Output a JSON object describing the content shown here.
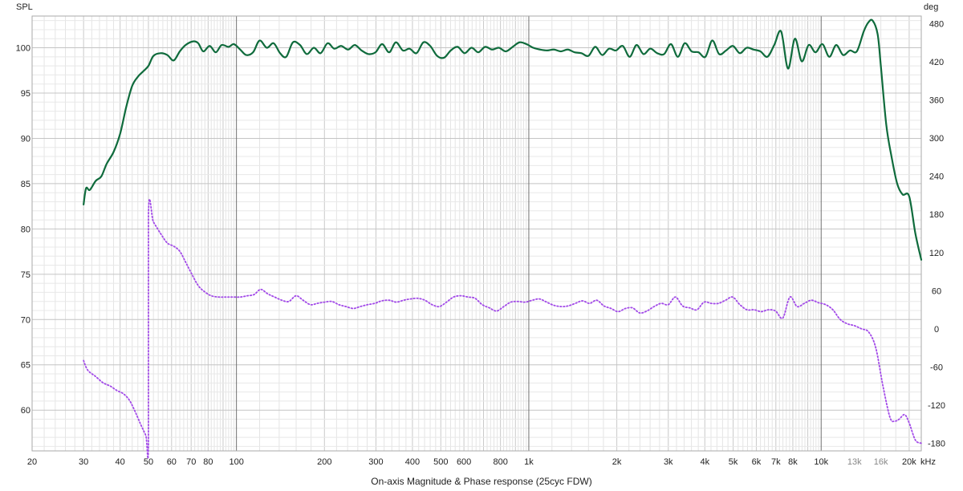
{
  "chart_data": {
    "type": "line",
    "title": "On-axis Magnitude & Phase response (25cyc FDW)",
    "xscale": "log",
    "xlim": [
      20,
      22000
    ],
    "x_ticks": [
      {
        "value": 20,
        "label": "20"
      },
      {
        "value": 30,
        "label": "30"
      },
      {
        "value": 40,
        "label": "40"
      },
      {
        "value": 50,
        "label": "50"
      },
      {
        "value": 60,
        "label": "60"
      },
      {
        "value": 70,
        "label": "70"
      },
      {
        "value": 80,
        "label": "80"
      },
      {
        "value": 100,
        "label": "100"
      },
      {
        "value": 200,
        "label": "200"
      },
      {
        "value": 300,
        "label": "300"
      },
      {
        "value": 400,
        "label": "400"
      },
      {
        "value": 500,
        "label": "500"
      },
      {
        "value": 600,
        "label": "600"
      },
      {
        "value": 800,
        "label": "800"
      },
      {
        "value": 1000,
        "label": "1k"
      },
      {
        "value": 2000,
        "label": "2k"
      },
      {
        "value": 3000,
        "label": "3k"
      },
      {
        "value": 4000,
        "label": "4k"
      },
      {
        "value": 5000,
        "label": "5k"
      },
      {
        "value": 6000,
        "label": "6k"
      },
      {
        "value": 7000,
        "label": "7k"
      },
      {
        "value": 8000,
        "label": "8k"
      },
      {
        "value": 10000,
        "label": "10k"
      },
      {
        "value": 13000,
        "label": "13k",
        "minor": true
      },
      {
        "value": 16000,
        "label": "16k",
        "minor": true
      },
      {
        "value": 20000,
        "label": "20k"
      }
    ],
    "x_unit": "kHz",
    "y_left": {
      "label": "SPL",
      "range": [
        55.5,
        103.5
      ],
      "ticks": [
        60,
        65,
        70,
        75,
        80,
        85,
        90,
        95,
        100
      ]
    },
    "y_right": {
      "label": "deg",
      "range": [
        -192,
        492
      ],
      "ticks": [
        -180,
        -120,
        -60,
        0,
        60,
        120,
        180,
        240,
        300,
        360,
        420,
        480
      ]
    },
    "grid": true,
    "series": [
      {
        "axis": "left",
        "color": "#0f6b3c",
        "style": "solid",
        "points": [
          [
            30,
            82.7
          ],
          [
            30.6,
            84.5
          ],
          [
            31.5,
            84.3
          ],
          [
            33,
            85.3
          ],
          [
            34.5,
            85.8
          ],
          [
            36,
            87.2
          ],
          [
            38,
            88.5
          ],
          [
            40,
            90.5
          ],
          [
            42,
            93.5
          ],
          [
            44,
            95.8
          ],
          [
            46,
            96.8
          ],
          [
            48,
            97.4
          ],
          [
            50,
            98.0
          ],
          [
            52,
            99.1
          ],
          [
            55,
            99.4
          ],
          [
            58,
            99.2
          ],
          [
            61,
            98.6
          ],
          [
            64,
            99.6
          ],
          [
            67,
            100.3
          ],
          [
            71,
            100.7
          ],
          [
            74,
            100.5
          ],
          [
            77,
            99.6
          ],
          [
            81,
            100.2
          ],
          [
            85,
            99.5
          ],
          [
            89,
            100.3
          ],
          [
            94,
            100.1
          ],
          [
            98,
            100.4
          ],
          [
            103,
            99.8
          ],
          [
            108,
            99.2
          ],
          [
            114,
            99.5
          ],
          [
            120,
            100.8
          ],
          [
            127,
            100.0
          ],
          [
            134,
            100.5
          ],
          [
            141,
            99.4
          ],
          [
            148,
            99.0
          ],
          [
            156,
            100.6
          ],
          [
            165,
            100.3
          ],
          [
            174,
            99.3
          ],
          [
            184,
            100.0
          ],
          [
            194,
            99.4
          ],
          [
            205,
            100.5
          ],
          [
            216,
            99.9
          ],
          [
            228,
            100.2
          ],
          [
            241,
            99.8
          ],
          [
            254,
            100.3
          ],
          [
            268,
            99.7
          ],
          [
            283,
            99.3
          ],
          [
            299,
            99.5
          ],
          [
            315,
            100.4
          ],
          [
            333,
            99.5
          ],
          [
            351,
            100.6
          ],
          [
            371,
            99.7
          ],
          [
            391,
            99.9
          ],
          [
            413,
            99.4
          ],
          [
            436,
            100.6
          ],
          [
            460,
            100.2
          ],
          [
            486,
            99.1
          ],
          [
            513,
            98.9
          ],
          [
            541,
            99.7
          ],
          [
            571,
            100.1
          ],
          [
            603,
            99.4
          ],
          [
            637,
            100.0
          ],
          [
            672,
            99.5
          ],
          [
            709,
            100.1
          ],
          [
            749,
            99.8
          ],
          [
            790,
            100.0
          ],
          [
            834,
            99.6
          ],
          [
            881,
            100.1
          ],
          [
            930,
            100.6
          ],
          [
            982,
            100.4
          ],
          [
            1036,
            100.0
          ],
          [
            1094,
            99.8
          ],
          [
            1155,
            99.7
          ],
          [
            1219,
            99.8
          ],
          [
            1287,
            99.6
          ],
          [
            1359,
            99.8
          ],
          [
            1434,
            99.5
          ],
          [
            1514,
            99.4
          ],
          [
            1599,
            99.1
          ],
          [
            1688,
            100.1
          ],
          [
            1782,
            99.2
          ],
          [
            1881,
            99.9
          ],
          [
            1986,
            99.7
          ],
          [
            2096,
            100.2
          ],
          [
            2213,
            99.0
          ],
          [
            2336,
            100.3
          ],
          [
            2467,
            99.3
          ],
          [
            2604,
            99.9
          ],
          [
            2749,
            99.4
          ],
          [
            2902,
            99.3
          ],
          [
            3064,
            100.4
          ],
          [
            3235,
            99.0
          ],
          [
            3415,
            100.5
          ],
          [
            3605,
            99.6
          ],
          [
            3806,
            99.5
          ],
          [
            4018,
            99.0
          ],
          [
            4242,
            100.8
          ],
          [
            4478,
            99.3
          ],
          [
            4728,
            99.7
          ],
          [
            4991,
            100.2
          ],
          [
            5269,
            99.4
          ],
          [
            5563,
            100.0
          ],
          [
            5873,
            99.8
          ],
          [
            6200,
            99.6
          ],
          [
            6546,
            99.0
          ],
          [
            6910,
            100.3
          ],
          [
            7295,
            101.8
          ],
          [
            7702,
            97.7
          ],
          [
            8131,
            101.0
          ],
          [
            8584,
            98.5
          ],
          [
            9062,
            100.3
          ],
          [
            9567,
            99.5
          ],
          [
            10100,
            100.4
          ],
          [
            10663,
            99.0
          ],
          [
            11257,
            100.3
          ],
          [
            11884,
            99.2
          ],
          [
            12546,
            99.7
          ],
          [
            13245,
            99.6
          ],
          [
            13983,
            101.8
          ],
          [
            14500,
            102.8
          ],
          [
            15000,
            103.0
          ],
          [
            15600,
            101.5
          ],
          [
            16000,
            98.0
          ],
          [
            16700,
            91.5
          ],
          [
            17400,
            88.0
          ],
          [
            18200,
            85.0
          ],
          [
            19000,
            83.8
          ],
          [
            20000,
            83.6
          ],
          [
            21000,
            79.5
          ],
          [
            22000,
            76.6
          ]
        ]
      },
      {
        "axis": "right",
        "color": "#a24ae8",
        "style": "dotted",
        "points": [
          [
            30,
            -50
          ],
          [
            31,
            -65
          ],
          [
            33,
            -75
          ],
          [
            35,
            -85
          ],
          [
            37,
            -90
          ],
          [
            39,
            -97
          ],
          [
            41,
            -102
          ],
          [
            43,
            -112
          ],
          [
            45,
            -130
          ],
          [
            47,
            -150
          ],
          [
            49,
            -168
          ],
          [
            50,
            -180
          ],
          [
            50.001,
            180
          ],
          [
            52,
            168
          ],
          [
            55,
            150
          ],
          [
            58,
            135
          ],
          [
            61,
            130
          ],
          [
            64,
            122
          ],
          [
            67,
            105
          ],
          [
            70,
            88
          ],
          [
            74,
            68
          ],
          [
            78,
            58
          ],
          [
            82,
            52
          ],
          [
            87,
            50
          ],
          [
            92,
            50
          ],
          [
            97,
            50
          ],
          [
            103,
            50
          ],
          [
            109,
            52
          ],
          [
            115,
            54
          ],
          [
            121,
            62
          ],
          [
            128,
            55
          ],
          [
            135,
            50
          ],
          [
            143,
            45
          ],
          [
            151,
            43
          ],
          [
            160,
            52
          ],
          [
            169,
            45
          ],
          [
            179,
            38
          ],
          [
            189,
            40
          ],
          [
            200,
            42
          ],
          [
            212,
            43
          ],
          [
            224,
            38
          ],
          [
            237,
            35
          ],
          [
            251,
            32
          ],
          [
            265,
            35
          ],
          [
            281,
            38
          ],
          [
            297,
            40
          ],
          [
            314,
            44
          ],
          [
            333,
            45
          ],
          [
            352,
            42
          ],
          [
            373,
            45
          ],
          [
            394,
            47
          ],
          [
            417,
            48
          ],
          [
            441,
            45
          ],
          [
            467,
            38
          ],
          [
            494,
            35
          ],
          [
            523,
            42
          ],
          [
            553,
            50
          ],
          [
            585,
            52
          ],
          [
            619,
            50
          ],
          [
            655,
            48
          ],
          [
            693,
            38
          ],
          [
            733,
            33
          ],
          [
            776,
            28
          ],
          [
            821,
            35
          ],
          [
            868,
            42
          ],
          [
            919,
            43
          ],
          [
            972,
            42
          ],
          [
            1028,
            45
          ],
          [
            1088,
            47
          ],
          [
            1151,
            42
          ],
          [
            1218,
            37
          ],
          [
            1289,
            35
          ],
          [
            1363,
            36
          ],
          [
            1442,
            40
          ],
          [
            1526,
            44
          ],
          [
            1614,
            40
          ],
          [
            1708,
            45
          ],
          [
            1807,
            36
          ],
          [
            1912,
            32
          ],
          [
            2022,
            27
          ],
          [
            2140,
            32
          ],
          [
            2264,
            33
          ],
          [
            2395,
            25
          ],
          [
            2534,
            28
          ],
          [
            2681,
            35
          ],
          [
            2836,
            40
          ],
          [
            3000,
            38
          ],
          [
            3174,
            50
          ],
          [
            3358,
            36
          ],
          [
            3553,
            33
          ],
          [
            3759,
            30
          ],
          [
            3977,
            42
          ],
          [
            4207,
            40
          ],
          [
            4451,
            40
          ],
          [
            4709,
            45
          ],
          [
            4982,
            50
          ],
          [
            5271,
            38
          ],
          [
            5577,
            30
          ],
          [
            5900,
            30
          ],
          [
            6242,
            27
          ],
          [
            6603,
            30
          ],
          [
            6986,
            28
          ],
          [
            7391,
            17
          ],
          [
            7819,
            50
          ],
          [
            8273,
            35
          ],
          [
            8752,
            40
          ],
          [
            9260,
            45
          ],
          [
            9797,
            41
          ],
          [
            10365,
            38
          ],
          [
            10966,
            30
          ],
          [
            11602,
            15
          ],
          [
            12275,
            8
          ],
          [
            12986,
            5
          ],
          [
            13739,
            0
          ],
          [
            14535,
            -5
          ],
          [
            15378,
            -30
          ],
          [
            16270,
            -90
          ],
          [
            17213,
            -140
          ],
          [
            17900,
            -145
          ],
          [
            18500,
            -142
          ],
          [
            19300,
            -135
          ],
          [
            20000,
            -148
          ],
          [
            21000,
            -175
          ],
          [
            22000,
            -180
          ]
        ]
      }
    ]
  }
}
